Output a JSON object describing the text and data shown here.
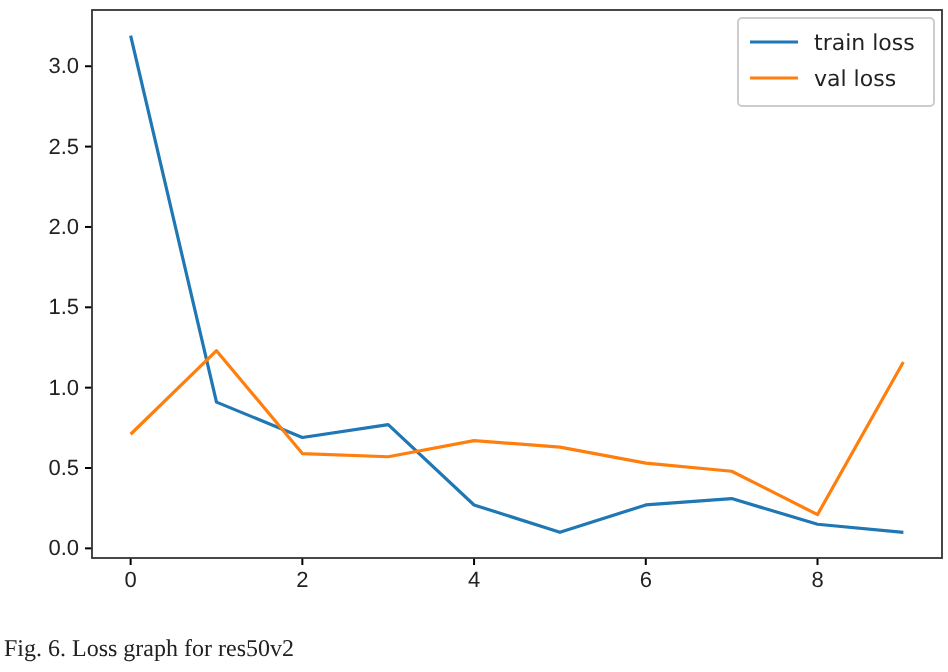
{
  "chart_data": {
    "type": "line",
    "x": [
      0,
      1,
      2,
      3,
      4,
      5,
      6,
      7,
      8,
      9
    ],
    "series": [
      {
        "name": "train loss",
        "color": "#1f77b4",
        "values": [
          3.19,
          0.91,
          0.69,
          0.77,
          0.27,
          0.1,
          0.27,
          0.31,
          0.15,
          0.1
        ]
      },
      {
        "name": "val loss",
        "color": "#ff7f0e",
        "values": [
          0.71,
          1.23,
          0.59,
          0.57,
          0.67,
          0.63,
          0.53,
          0.48,
          0.21,
          1.16
        ]
      }
    ],
    "xlim": [
      -0.45,
      9.45
    ],
    "xticks": [
      0,
      2,
      4,
      6,
      8
    ],
    "ylim": [
      -0.06,
      3.35
    ],
    "yticks": [
      {
        "value": 0,
        "label": "0.0"
      },
      {
        "value": 0.5,
        "label": "0.5"
      },
      {
        "value": 1,
        "label": "1.0"
      },
      {
        "value": 1.5,
        "label": "1.5"
      },
      {
        "value": 2,
        "label": "2.0"
      },
      {
        "value": 2.5,
        "label": "2.5"
      },
      {
        "value": 3,
        "label": "3.0"
      }
    ],
    "legend": "top right",
    "grid": false,
    "line_style": "solid",
    "marker": "none",
    "annotations": [
      "Fig. 6.   Loss graph for res50v2"
    ]
  }
}
